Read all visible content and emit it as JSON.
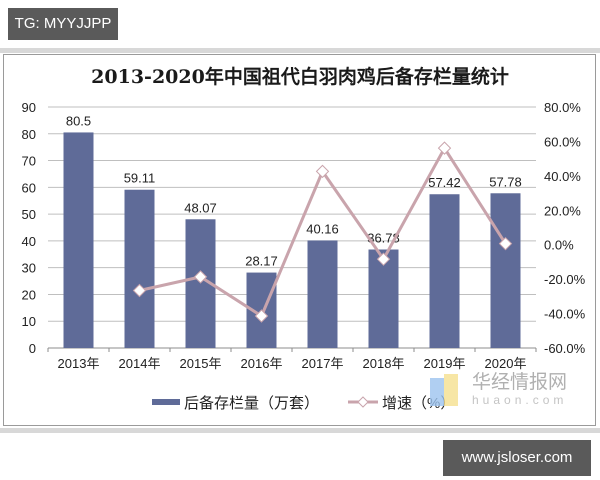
{
  "watermark_top": "TG: MYYJJPP",
  "watermark_bottom": "www.jsloser.com",
  "logo": {
    "cn": "华经情报网",
    "en": "huaon.com"
  },
  "colors": {
    "bar": "#5f6b98",
    "line": "#c9a4ac",
    "grid": "#bfbfbf",
    "marker": "#ffffff"
  },
  "chart_data": {
    "type": "bar",
    "title": "2013-2020年中国祖代白羽肉鸡后备存栏量统计",
    "categories": [
      "2013年",
      "2014年",
      "2015年",
      "2016年",
      "2017年",
      "2018年",
      "2019年",
      "2020年"
    ],
    "series": [
      {
        "name": "后备存栏量（万套）",
        "type": "bar",
        "axis": "left",
        "values": [
          80.5,
          59.11,
          48.07,
          28.17,
          40.16,
          36.78,
          57.42,
          57.78
        ],
        "labels": [
          "80.5",
          "59.11",
          "48.07",
          "28.17",
          "40.16",
          "36.78",
          "57.42",
          "57.78"
        ]
      },
      {
        "name": "增速（%）",
        "type": "line",
        "axis": "right",
        "values": [
          null,
          -26.6,
          -18.7,
          -41.4,
          42.6,
          -8.4,
          56.1,
          0.6
        ]
      }
    ],
    "y_left": {
      "min": 0,
      "max": 90,
      "step": 10,
      "ticks": [
        "0",
        "10",
        "20",
        "30",
        "40",
        "50",
        "60",
        "70",
        "80",
        "90"
      ]
    },
    "y_right": {
      "min": -60,
      "max": 80,
      "step": 20,
      "ticks": [
        "-60.0%",
        "-40.0%",
        "-20.0%",
        "0.0%",
        "20.0%",
        "40.0%",
        "60.0%",
        "80.0%"
      ]
    },
    "grid": true,
    "legend_position": "bottom"
  }
}
